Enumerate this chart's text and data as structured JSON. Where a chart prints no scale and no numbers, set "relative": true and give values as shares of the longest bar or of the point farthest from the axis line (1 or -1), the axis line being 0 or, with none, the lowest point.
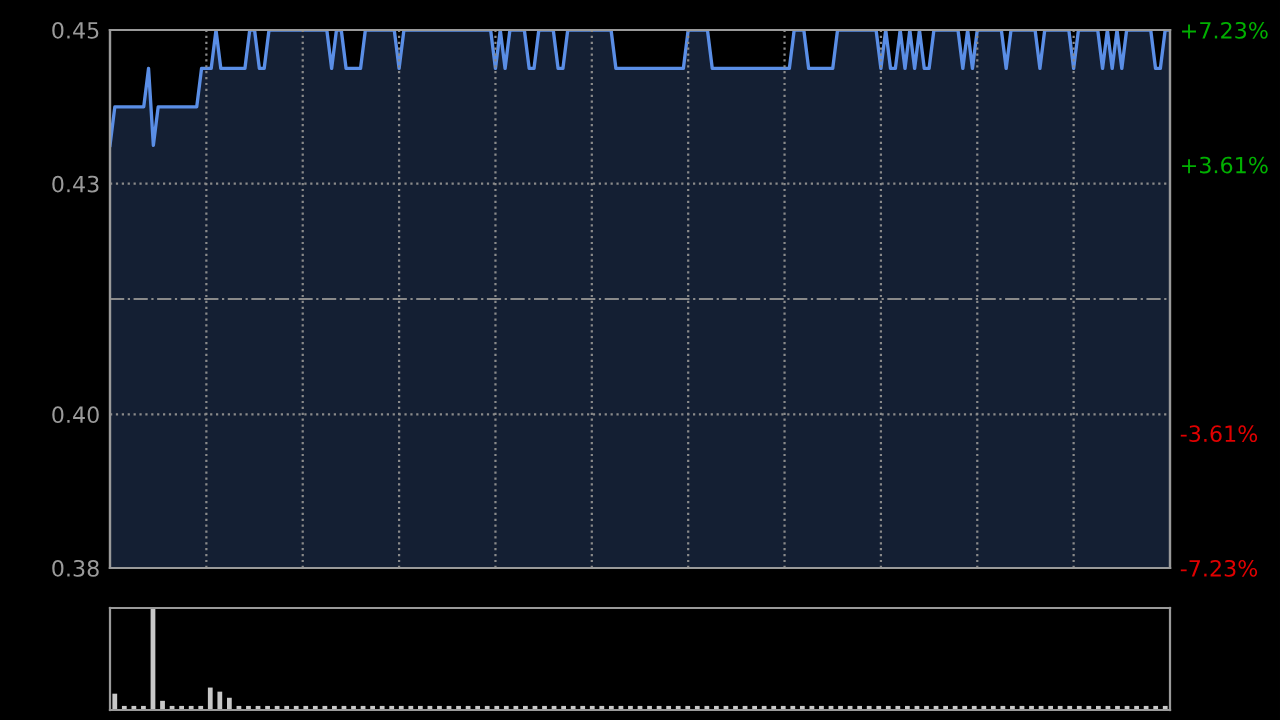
{
  "chart_data": [
    {
      "type": "area",
      "categories": [
        null,
        null,
        null,
        null,
        null,
        null,
        null,
        null,
        null,
        null,
        null,
        null,
        null,
        null,
        null,
        null,
        null,
        null,
        null,
        null,
        null,
        null,
        null,
        null,
        null,
        null,
        null,
        null,
        null,
        null,
        null,
        null,
        null,
        null,
        null,
        null,
        null,
        null,
        null,
        null,
        null,
        null,
        null,
        null,
        null,
        null,
        null,
        null,
        null,
        null,
        null,
        null,
        null,
        null,
        null,
        null,
        null,
        null,
        null,
        null,
        null,
        null,
        null,
        null,
        null,
        null,
        null,
        null,
        null,
        null,
        null,
        null,
        null,
        null,
        null,
        null,
        null,
        null,
        null,
        null,
        null,
        null,
        null,
        null,
        null,
        null,
        null,
        null,
        null,
        null,
        null,
        null,
        null,
        null,
        null,
        null,
        null,
        null,
        null,
        null,
        null,
        null,
        null,
        null,
        null,
        null,
        null,
        null,
        null,
        null,
        null,
        null,
        null,
        null,
        null,
        null,
        null,
        null,
        null,
        null,
        null,
        null,
        null,
        null,
        null,
        null,
        null,
        null,
        null,
        null,
        null,
        null,
        null,
        null,
        null,
        null,
        null,
        null,
        null,
        null,
        null,
        null,
        null,
        null,
        null,
        null,
        null,
        null,
        null,
        null,
        null,
        null,
        null,
        null,
        null,
        null,
        null,
        null,
        null,
        null,
        null,
        null,
        null,
        null,
        null,
        null,
        null,
        null,
        null,
        null,
        null,
        null,
        null,
        null,
        null,
        null,
        null,
        null,
        null,
        null,
        null,
        null,
        null,
        null,
        null,
        null,
        null,
        null,
        null,
        null,
        null,
        null,
        null,
        null,
        null,
        null,
        null,
        null,
        null,
        null,
        null,
        null,
        null,
        null,
        null,
        null,
        null,
        null,
        null,
        null,
        null,
        null,
        null,
        null,
        null,
        null,
        null,
        null,
        null,
        null,
        null
      ],
      "series": [
        {
          "color": "#5a8ee6",
          "values": [
            0.435,
            0.44,
            0.44,
            0.44,
            0.44,
            0.44,
            0.44,
            0.44,
            0.445,
            0.435,
            0.44,
            0.44,
            0.44,
            0.44,
            0.44,
            0.44,
            0.44,
            0.44,
            0.44,
            0.445,
            0.445,
            0.445,
            0.45,
            0.445,
            0.445,
            0.445,
            0.445,
            0.445,
            0.445,
            0.45,
            0.45,
            0.445,
            0.445,
            0.45,
            0.45,
            0.45,
            0.45,
            0.45,
            0.45,
            0.45,
            0.45,
            0.45,
            0.45,
            0.45,
            0.45,
            0.45,
            0.445,
            0.45,
            0.45,
            0.445,
            0.445,
            0.445,
            0.445,
            0.45,
            0.45,
            0.45,
            0.45,
            0.45,
            0.45,
            0.45,
            0.445,
            0.45,
            0.45,
            0.45,
            0.45,
            0.45,
            0.45,
            0.45,
            0.45,
            0.45,
            0.45,
            0.45,
            0.45,
            0.45,
            0.45,
            0.45,
            0.45,
            0.45,
            0.45,
            0.45,
            0.445,
            0.45,
            0.445,
            0.45,
            0.45,
            0.45,
            0.45,
            0.445,
            0.445,
            0.45,
            0.45,
            0.45,
            0.45,
            0.445,
            0.445,
            0.45,
            0.45,
            0.45,
            0.45,
            0.45,
            0.45,
            0.45,
            0.45,
            0.45,
            0.45,
            0.445,
            0.445,
            0.445,
            0.445,
            0.445,
            0.445,
            0.445,
            0.445,
            0.445,
            0.445,
            0.445,
            0.445,
            0.445,
            0.445,
            0.445,
            0.45,
            0.45,
            0.45,
            0.45,
            0.45,
            0.445,
            0.445,
            0.445,
            0.445,
            0.445,
            0.445,
            0.445,
            0.445,
            0.445,
            0.445,
            0.445,
            0.445,
            0.445,
            0.445,
            0.445,
            0.445,
            0.445,
            0.45,
            0.45,
            0.45,
            0.445,
            0.445,
            0.445,
            0.445,
            0.445,
            0.445,
            0.45,
            0.45,
            0.45,
            0.45,
            0.45,
            0.45,
            0.45,
            0.45,
            0.45,
            0.445,
            0.45,
            0.445,
            0.445,
            0.45,
            0.445,
            0.45,
            0.445,
            0.45,
            0.445,
            0.445,
            0.45,
            0.45,
            0.45,
            0.45,
            0.45,
            0.45,
            0.445,
            0.45,
            0.445,
            0.45,
            0.45,
            0.45,
            0.45,
            0.45,
            0.45,
            0.445,
            0.45,
            0.45,
            0.45,
            0.45,
            0.45,
            0.45,
            0.445,
            0.45,
            0.45,
            0.45,
            0.45,
            0.45,
            0.45,
            0.445,
            0.45,
            0.45,
            0.45,
            0.45,
            0.45,
            0.445,
            0.45,
            0.445,
            0.45,
            0.445,
            0.45,
            0.45,
            0.45,
            0.45,
            0.45,
            0.45,
            0.445,
            0.445,
            0.45,
            0.45
          ]
        }
      ],
      "ylim": [
        0.38,
        0.45
      ],
      "yticks": [
        {
          "value": 0.45,
          "label": "0.45"
        },
        {
          "value": 0.43,
          "label": "0.43"
        },
        {
          "value": 0.4,
          "label": "0.40"
        },
        {
          "value": 0.38,
          "label": "0.38"
        }
      ],
      "y2lim": [
        -7.23,
        7.23
      ],
      "y2ticks": [
        {
          "value": 7.23,
          "label": "+7.23%"
        },
        {
          "value": 3.61,
          "label": "+3.61%"
        },
        {
          "value": -3.61,
          "label": "-3.61%"
        },
        {
          "value": -7.23,
          "label": "-7.23%"
        }
      ],
      "ref_lines": [
        {
          "axis": "y2",
          "value": 0,
          "color": "#8a8a8a",
          "line_style": "dashdot"
        }
      ],
      "grid": true,
      "tick_labels": "y"
    },
    {
      "type": "bar",
      "relative": true,
      "categories": [
        null,
        null,
        null,
        null,
        null,
        null,
        null,
        null,
        null,
        null,
        null,
        null,
        null,
        null,
        null,
        null,
        null,
        null,
        null,
        null,
        null,
        null,
        null,
        null,
        null,
        null,
        null,
        null,
        null,
        null,
        null,
        null,
        null,
        null,
        null,
        null,
        null,
        null,
        null,
        null,
        null,
        null,
        null,
        null,
        null,
        null,
        null,
        null,
        null,
        null,
        null,
        null,
        null,
        null,
        null,
        null,
        null,
        null,
        null,
        null,
        null,
        null,
        null,
        null,
        null,
        null,
        null,
        null,
        null,
        null,
        null,
        null,
        null,
        null,
        null,
        null,
        null,
        null,
        null,
        null,
        null,
        null,
        null,
        null,
        null,
        null,
        null,
        null,
        null,
        null,
        null,
        null,
        null,
        null,
        null,
        null,
        null,
        null,
        null,
        null,
        null,
        null,
        null,
        null,
        null,
        null,
        null,
        null,
        null,
        null,
        null
      ],
      "values": [
        0.16,
        0.04,
        0.04,
        0.04,
        1,
        0.09,
        0.04,
        0.04,
        0.04,
        0.04,
        0.22,
        0.18,
        0.12,
        0.04,
        0.04,
        0.04,
        0.04,
        0.04,
        0.04,
        0.04,
        0.04,
        0.04,
        0.04,
        0.04,
        0.04,
        0.04,
        0.04,
        0.04,
        0.04,
        0.04,
        0.04,
        0.04,
        0.04,
        0.04,
        0.04,
        0.04,
        0.04,
        0.04,
        0.04,
        0.04,
        0.04,
        0.04,
        0.04,
        0.04,
        0.04,
        0.04,
        0.04,
        0.04,
        0.04,
        0.04,
        0.04,
        0.04,
        0.04,
        0.04,
        0.04,
        0.04,
        0.04,
        0.04,
        0.04,
        0.04,
        0.04,
        0.04,
        0.04,
        0.04,
        0.04,
        0.04,
        0.04,
        0.04,
        0.04,
        0.04,
        0.04,
        0.04,
        0.04,
        0.04,
        0.04,
        0.04,
        0.04,
        0.04,
        0.04,
        0.04,
        0.04,
        0.04,
        0.04,
        0.04,
        0.04,
        0.04,
        0.04,
        0.04,
        0.04,
        0.04,
        0.04,
        0.04,
        0.04,
        0.04,
        0.04,
        0.04,
        0.04,
        0.04,
        0.04,
        0.04,
        0.04,
        0.04,
        0.04,
        0.04,
        0.04,
        0.04,
        0.04,
        0.04,
        0.04,
        0.04,
        0.04
      ],
      "color": "#c8c8c8",
      "tick_labels": false
    }
  ]
}
